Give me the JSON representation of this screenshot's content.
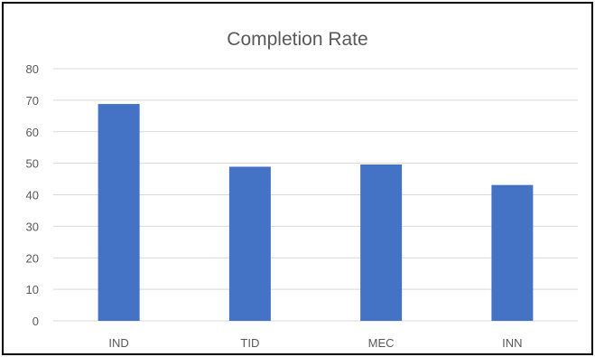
{
  "chart_data": {
    "type": "bar",
    "title": "Completion Rate",
    "categories": [
      "IND",
      "TID",
      "MEC",
      "INN"
    ],
    "values": [
      68.8,
      48.9,
      49.6,
      43.1
    ],
    "ylim": [
      0,
      80
    ],
    "yticks": [
      0,
      10,
      20,
      30,
      40,
      50,
      60,
      70,
      80
    ],
    "grid": true,
    "legend": "none",
    "bar_color": "#4472C4",
    "grid_color": "#D9D9D9",
    "text_color": "#595959"
  }
}
